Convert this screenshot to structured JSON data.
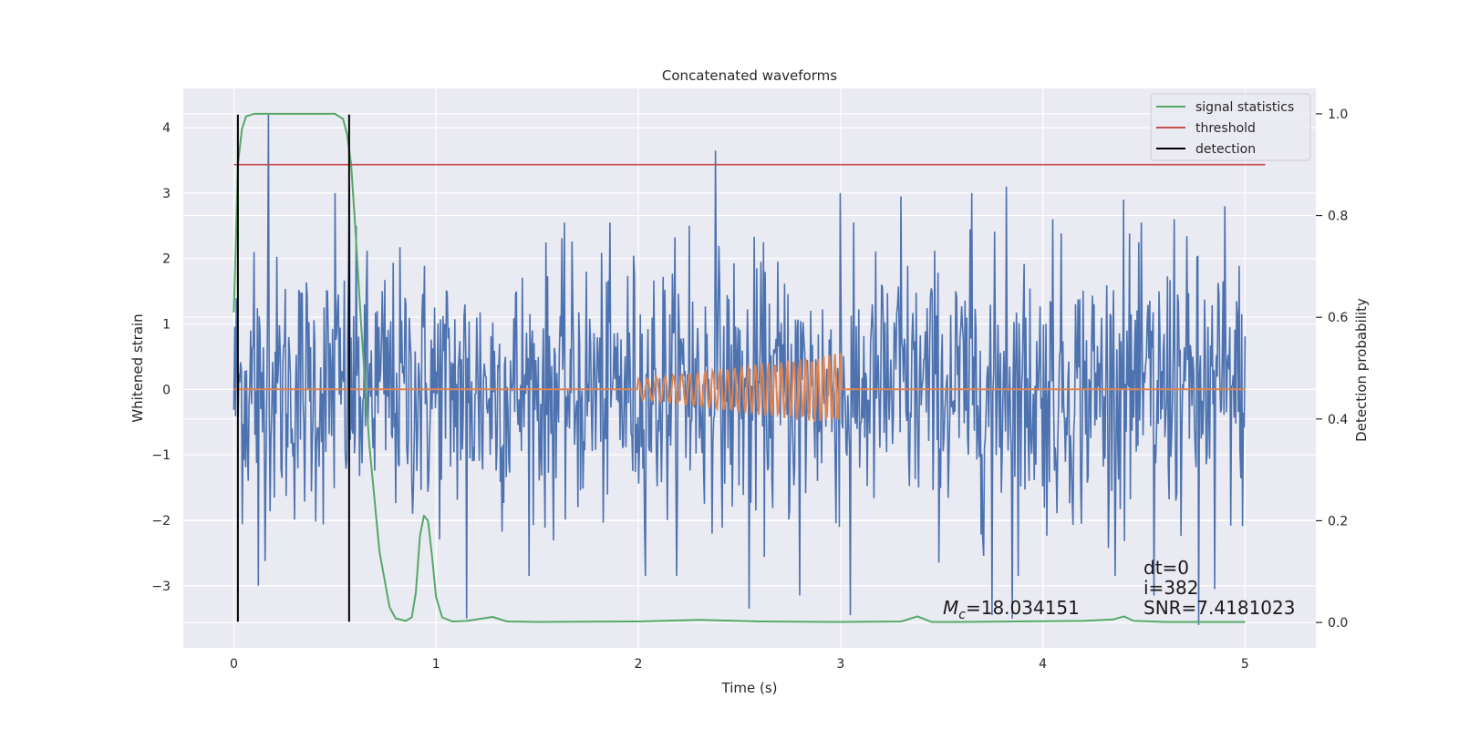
{
  "chart_data": {
    "type": "line",
    "title": "Concatenated waveforms",
    "xlabel": "Time (s)",
    "ylabel": "Whitened strain",
    "y2label": "Detection probability",
    "xlim": [
      -0.25,
      5.35
    ],
    "ylim": [
      -3.95,
      4.6
    ],
    "y2lim": [
      -0.05,
      1.05
    ],
    "xticks": [
      0,
      1,
      2,
      3,
      4,
      5
    ],
    "yticks": [
      -3,
      -2,
      -1,
      0,
      1,
      2,
      3,
      4
    ],
    "y2ticks": [
      0.0,
      0.2,
      0.4,
      0.6,
      0.8,
      1.0
    ],
    "grid": true,
    "legend_position": "top-right",
    "colors": {
      "strain": "#4c72b0",
      "template": "#dd8452",
      "statistic": "#55a868",
      "threshold": "#c44e52",
      "detection": "#000000",
      "background": "#eaeaf2",
      "grid": "#ffffff"
    },
    "series": [
      {
        "name": "signal statistics",
        "axis": "right",
        "color": "#55a868",
        "x": [
          0.0,
          0.01,
          0.02,
          0.04,
          0.06,
          0.1,
          0.2,
          0.35,
          0.5,
          0.54,
          0.56,
          0.58,
          0.6,
          0.63,
          0.67,
          0.72,
          0.77,
          0.8,
          0.85,
          0.88,
          0.9,
          0.92,
          0.94,
          0.96,
          0.98,
          1.0,
          1.03,
          1.08,
          1.15,
          1.2,
          1.28,
          1.35,
          1.5,
          2.0,
          2.3,
          2.6,
          3.0,
          3.3,
          3.38,
          3.45,
          3.6,
          4.2,
          4.35,
          4.4,
          4.45,
          4.6,
          5.0
        ],
        "y": [
          0.61,
          0.75,
          0.9,
          0.97,
          0.995,
          1.0,
          1.0,
          1.0,
          1.0,
          0.99,
          0.96,
          0.9,
          0.78,
          0.58,
          0.35,
          0.14,
          0.03,
          0.008,
          0.003,
          0.01,
          0.06,
          0.17,
          0.21,
          0.2,
          0.13,
          0.05,
          0.01,
          0.002,
          0.003,
          0.006,
          0.011,
          0.002,
          0.001,
          0.002,
          0.005,
          0.002,
          0.001,
          0.002,
          0.012,
          0.001,
          0.001,
          0.003,
          0.006,
          0.012,
          0.003,
          0.001,
          0.001
        ]
      },
      {
        "name": "threshold",
        "axis": "right",
        "color": "#c44e52",
        "x": [
          0.0,
          5.1
        ],
        "y": [
          0.9,
          0.9
        ]
      },
      {
        "name": "detection",
        "axis": "left",
        "color": "#000000",
        "x_lines": [
          0.02,
          0.57
        ],
        "y_range": [
          -3.55,
          4.2
        ]
      }
    ],
    "annotations": {
      "mc_symbol": "M",
      "mc_subscript": "c",
      "mc_value": "=18.034151",
      "dt": "dt=0",
      "i": "i=382",
      "snr": "SNR=7.4181023"
    },
    "strain_noise": {
      "x_range": [
        0.0,
        5.0
      ],
      "n_points": 1200,
      "peaks": [
        {
          "x": 0.17,
          "y": 4.2
        },
        {
          "x": 0.1,
          "y": 2.1
        },
        {
          "x": 0.5,
          "y": 3.0
        },
        {
          "x": 0.57,
          "y": 3.1
        },
        {
          "x": 2.38,
          "y": 3.65
        },
        {
          "x": 2.25,
          "y": 2.5
        },
        {
          "x": 3.0,
          "y": 3.0
        },
        {
          "x": 3.3,
          "y": 2.95
        },
        {
          "x": 3.65,
          "y": 3.0
        },
        {
          "x": 3.82,
          "y": 3.1
        },
        {
          "x": 4.05,
          "y": 2.6
        },
        {
          "x": 4.4,
          "y": 2.9
        },
        {
          "x": 4.65,
          "y": 2.6
        },
        {
          "x": 4.9,
          "y": 2.8
        },
        {
          "x": 0.12,
          "y": -3.0
        },
        {
          "x": 1.15,
          "y": -3.5
        },
        {
          "x": 2.55,
          "y": -3.35
        },
        {
          "x": 2.8,
          "y": -3.15
        },
        {
          "x": 3.05,
          "y": -3.45
        },
        {
          "x": 3.75,
          "y": -3.45
        },
        {
          "x": 3.85,
          "y": -3.5
        },
        {
          "x": 4.55,
          "y": -3.15
        },
        {
          "x": 4.77,
          "y": -3.6
        },
        {
          "x": 4.85,
          "y": -3.05
        }
      ]
    },
    "template_chirp": {
      "x_start": 2.0,
      "x_end": 3.0,
      "amp_start": 0.15,
      "amp_end": 0.55,
      "cycles": 29
    }
  }
}
